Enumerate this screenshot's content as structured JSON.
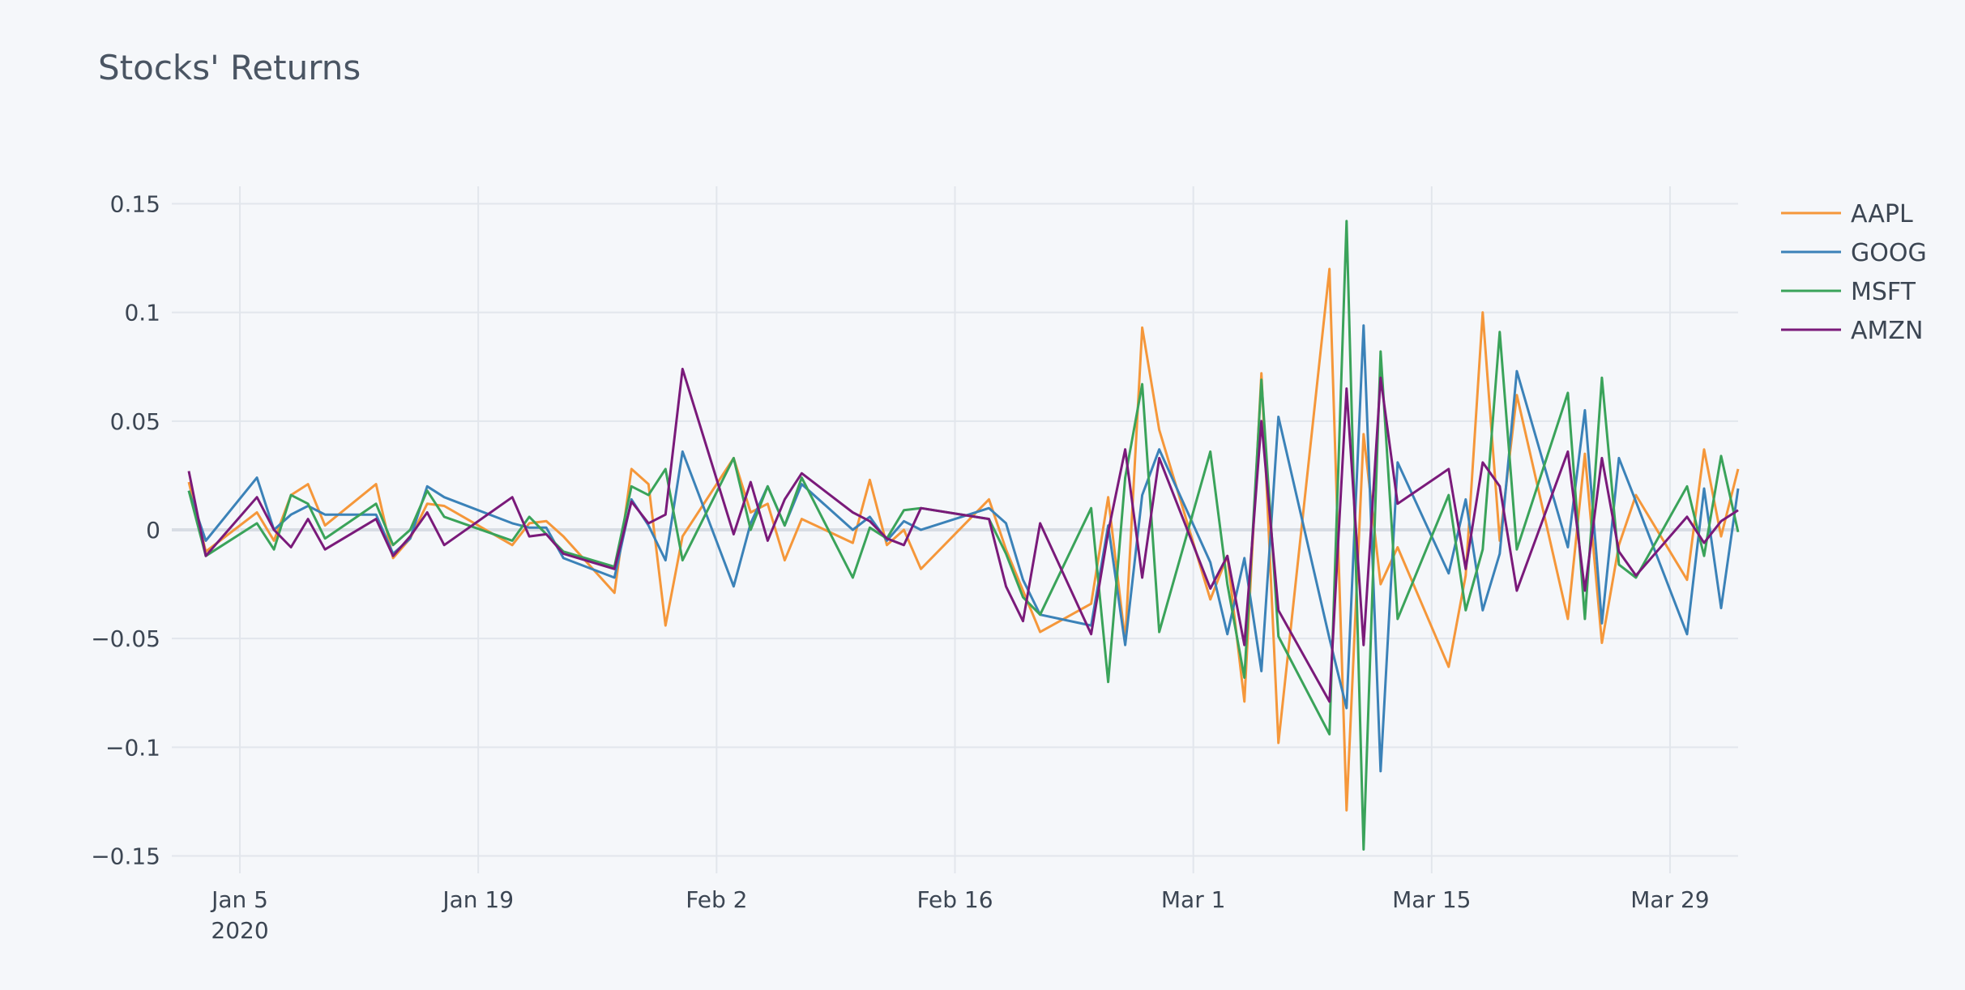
{
  "chart_data": {
    "type": "line",
    "title": "Stocks' Returns",
    "xlabel": "",
    "ylabel": "",
    "x_range": [
      "2020-01-01",
      "2020-04-02"
    ],
    "ylim": [
      -0.158,
      0.158
    ],
    "x_ticks": [
      {
        "date": "2020-01-05",
        "label": "Jan 5",
        "sublabel": "2020"
      },
      {
        "date": "2020-01-19",
        "label": "Jan 19",
        "sublabel": ""
      },
      {
        "date": "2020-02-02",
        "label": "Feb 2",
        "sublabel": ""
      },
      {
        "date": "2020-02-16",
        "label": "Feb 16",
        "sublabel": ""
      },
      {
        "date": "2020-03-01",
        "label": "Mar 1",
        "sublabel": ""
      },
      {
        "date": "2020-03-15",
        "label": "Mar 15",
        "sublabel": ""
      },
      {
        "date": "2020-03-29",
        "label": "Mar 29",
        "sublabel": ""
      }
    ],
    "y_ticks": [
      {
        "value": 0.15,
        "label": "0.15"
      },
      {
        "value": 0.1,
        "label": "0.1"
      },
      {
        "value": 0.05,
        "label": "0.05"
      },
      {
        "value": 0,
        "label": "0"
      },
      {
        "value": -0.05,
        "label": "−0.05"
      },
      {
        "value": -0.1,
        "label": "−0.1"
      },
      {
        "value": -0.15,
        "label": "−0.15"
      }
    ],
    "grid": true,
    "legend": "top-right",
    "x": [
      "2020-01-02",
      "2020-01-03",
      "2020-01-06",
      "2020-01-07",
      "2020-01-08",
      "2020-01-09",
      "2020-01-10",
      "2020-01-13",
      "2020-01-14",
      "2020-01-15",
      "2020-01-16",
      "2020-01-17",
      "2020-01-21",
      "2020-01-22",
      "2020-01-23",
      "2020-01-24",
      "2020-01-27",
      "2020-01-28",
      "2020-01-29",
      "2020-01-30",
      "2020-01-31",
      "2020-02-03",
      "2020-02-04",
      "2020-02-05",
      "2020-02-06",
      "2020-02-07",
      "2020-02-10",
      "2020-02-11",
      "2020-02-12",
      "2020-02-13",
      "2020-02-14",
      "2020-02-18",
      "2020-02-19",
      "2020-02-20",
      "2020-02-21",
      "2020-02-24",
      "2020-02-25",
      "2020-02-26",
      "2020-02-27",
      "2020-02-28",
      "2020-03-02",
      "2020-03-03",
      "2020-03-04",
      "2020-03-05",
      "2020-03-06",
      "2020-03-09",
      "2020-03-10",
      "2020-03-11",
      "2020-03-12",
      "2020-03-13",
      "2020-03-16",
      "2020-03-17",
      "2020-03-18",
      "2020-03-19",
      "2020-03-20",
      "2020-03-23",
      "2020-03-24",
      "2020-03-25",
      "2020-03-26",
      "2020-03-27",
      "2020-03-30",
      "2020-03-31",
      "2020-04-01",
      "2020-04-02"
    ],
    "series": [
      {
        "name": "AAPL",
        "color": "#f5973a",
        "values": [
          0.022,
          -0.01,
          0.008,
          -0.005,
          0.016,
          0.021,
          0.002,
          0.021,
          -0.013,
          -0.004,
          0.012,
          0.011,
          -0.007,
          0.003,
          0.004,
          -0.003,
          -0.029,
          0.028,
          0.021,
          -0.044,
          -0.003,
          0.033,
          0.008,
          0.012,
          -0.014,
          0.005,
          -0.006,
          0.023,
          -0.007,
          0.0,
          -0.018,
          0.014,
          -0.009,
          -0.028,
          -0.047,
          -0.034,
          0.015,
          -0.051,
          0.093,
          0.046,
          -0.032,
          -0.012,
          -0.079,
          0.072,
          -0.098,
          0.12,
          -0.129,
          0.044,
          -0.025,
          -0.008,
          -0.063,
          -0.021,
          0.1,
          -0.005,
          0.062,
          -0.041,
          0.035,
          -0.052,
          -0.007,
          0.016,
          -0.023,
          0.037,
          -0.003,
          0.028
        ]
      },
      {
        "name": "GOOG",
        "color": "#3b82b8",
        "values": [
          0.018,
          -0.005,
          0.024,
          0.0,
          0.007,
          0.011,
          0.007,
          0.007,
          -0.011,
          -0.004,
          0.02,
          0.015,
          0.003,
          0.001,
          0.001,
          -0.013,
          -0.022,
          0.014,
          0.002,
          -0.014,
          0.036,
          -0.026,
          0.003,
          0.02,
          0.002,
          0.021,
          0.0,
          0.006,
          -0.005,
          0.004,
          0.0,
          0.01,
          0.003,
          -0.023,
          -0.039,
          -0.044,
          0.002,
          -0.053,
          0.016,
          0.037,
          -0.015,
          -0.048,
          -0.013,
          -0.065,
          0.052,
          -0.05,
          -0.082,
          0.094,
          -0.111,
          0.031,
          -0.02,
          0.014,
          -0.037,
          -0.011,
          0.073,
          -0.008,
          0.055,
          -0.043,
          0.033,
          0.013,
          -0.048,
          0.019,
          -0.036,
          0.019
        ]
      },
      {
        "name": "MSFT",
        "color": "#3aa35a",
        "values": [
          0.018,
          -0.012,
          0.003,
          -0.009,
          0.016,
          0.012,
          -0.004,
          0.012,
          -0.007,
          0.0,
          0.018,
          0.006,
          -0.005,
          0.006,
          -0.002,
          -0.01,
          -0.017,
          0.02,
          0.016,
          0.028,
          -0.014,
          0.033,
          0.0,
          0.02,
          0.002,
          0.024,
          -0.022,
          0.001,
          -0.004,
          0.009,
          0.01,
          0.005,
          -0.011,
          -0.031,
          -0.039,
          0.01,
          -0.07,
          0.024,
          0.067,
          -0.047,
          0.036,
          -0.025,
          -0.068,
          0.069,
          -0.049,
          -0.094,
          0.142,
          -0.147,
          0.082,
          -0.041,
          0.016,
          -0.037,
          -0.009,
          0.091,
          -0.009,
          0.063,
          -0.041,
          0.07,
          -0.016,
          -0.022,
          0.02,
          -0.012,
          0.034,
          -0.001
        ]
      },
      {
        "name": "AMZN",
        "color": "#7a1a7a",
        "values": [
          0.027,
          -0.012,
          0.015,
          0.0,
          -0.008,
          0.005,
          -0.009,
          0.005,
          -0.012,
          -0.003,
          0.008,
          -0.007,
          0.015,
          -0.003,
          -0.002,
          -0.011,
          -0.018,
          0.013,
          0.003,
          0.007,
          0.074,
          -0.002,
          0.022,
          -0.005,
          0.014,
          0.026,
          0.008,
          0.004,
          -0.004,
          -0.007,
          0.01,
          0.005,
          -0.026,
          -0.042,
          0.003,
          -0.048,
          -0.001,
          0.037,
          -0.022,
          0.033,
          -0.027,
          -0.012,
          -0.053,
          0.05,
          -0.037,
          -0.079,
          0.065,
          -0.053,
          0.07,
          0.012,
          0.028,
          -0.018,
          0.031,
          0.02,
          -0.028,
          0.036,
          -0.028,
          0.033,
          -0.01,
          -0.021,
          0.006,
          -0.006,
          0.004,
          0.009
        ]
      }
    ]
  }
}
